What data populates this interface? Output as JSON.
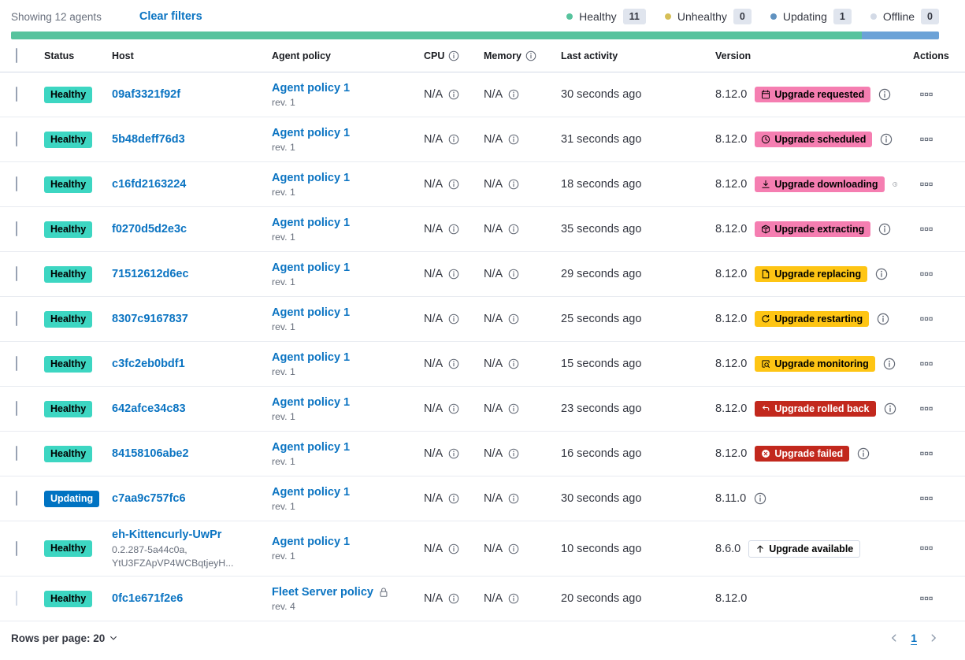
{
  "toolbar": {
    "showing": "Showing 12 agents",
    "clear_filters": "Clear filters",
    "legend": [
      {
        "label": "Healthy",
        "count": "11",
        "color": "#57c39d"
      },
      {
        "label": "Unhealthy",
        "count": "0",
        "color": "#d6bf57"
      },
      {
        "label": "Updating",
        "count": "1",
        "color": "#6092c0"
      },
      {
        "label": "Offline",
        "count": "0",
        "color": "#d3dae6"
      }
    ]
  },
  "health_bar": {
    "segments": [
      {
        "status": "healthy",
        "color": "#57c39d",
        "pct": 91.7
      },
      {
        "status": "updating",
        "color": "#6ba2d7",
        "pct": 8.3
      }
    ]
  },
  "table": {
    "headers": {
      "status": "Status",
      "host": "Host",
      "policy": "Agent policy",
      "cpu": "CPU",
      "memory": "Memory",
      "last_activity": "Last activity",
      "version": "Version",
      "actions": "Actions"
    },
    "rows": [
      {
        "status": "Healthy",
        "status_type": "healthy",
        "host": "09af3321f92f",
        "host_sub": "",
        "policy": "Agent policy 1",
        "policy_rev": "rev. 1",
        "policy_locked": false,
        "cpu": "N/A",
        "memory": "N/A",
        "last_activity": "30 seconds ago",
        "version": "8.12.0",
        "badge": {
          "label": "Upgrade requested",
          "icon": "calendar-icon",
          "type": "accent"
        },
        "version_info": true,
        "checkbox_disabled": false
      },
      {
        "status": "Healthy",
        "status_type": "healthy",
        "host": "5b48deff76d3",
        "host_sub": "",
        "policy": "Agent policy 1",
        "policy_rev": "rev. 1",
        "policy_locked": false,
        "cpu": "N/A",
        "memory": "N/A",
        "last_activity": "31 seconds ago",
        "version": "8.12.0",
        "badge": {
          "label": "Upgrade scheduled",
          "icon": "clock-icon",
          "type": "accent"
        },
        "version_info": true,
        "checkbox_disabled": false
      },
      {
        "status": "Healthy",
        "status_type": "healthy",
        "host": "c16fd2163224",
        "host_sub": "",
        "policy": "Agent policy 1",
        "policy_rev": "rev. 1",
        "policy_locked": false,
        "cpu": "N/A",
        "memory": "N/A",
        "last_activity": "18 seconds ago",
        "version": "8.12.0",
        "badge": {
          "label": "Upgrade downloading",
          "icon": "download-icon",
          "type": "accent"
        },
        "version_info": true,
        "checkbox_disabled": false
      },
      {
        "status": "Healthy",
        "status_type": "healthy",
        "host": "f0270d5d2e3c",
        "host_sub": "",
        "policy": "Agent policy 1",
        "policy_rev": "rev. 1",
        "policy_locked": false,
        "cpu": "N/A",
        "memory": "N/A",
        "last_activity": "35 seconds ago",
        "version": "8.12.0",
        "badge": {
          "label": "Upgrade extracting",
          "icon": "package-icon",
          "type": "accent"
        },
        "version_info": true,
        "checkbox_disabled": false
      },
      {
        "status": "Healthy",
        "status_type": "healthy",
        "host": "71512612d6ec",
        "host_sub": "",
        "policy": "Agent policy 1",
        "policy_rev": "rev. 1",
        "policy_locked": false,
        "cpu": "N/A",
        "memory": "N/A",
        "last_activity": "29 seconds ago",
        "version": "8.12.0",
        "badge": {
          "label": "Upgrade replacing",
          "icon": "document-icon",
          "type": "warning"
        },
        "version_info": true,
        "checkbox_disabled": false
      },
      {
        "status": "Healthy",
        "status_type": "healthy",
        "host": "8307c9167837",
        "host_sub": "",
        "policy": "Agent policy 1",
        "policy_rev": "rev. 1",
        "policy_locked": false,
        "cpu": "N/A",
        "memory": "N/A",
        "last_activity": "25 seconds ago",
        "version": "8.12.0",
        "badge": {
          "label": "Upgrade restarting",
          "icon": "refresh-icon",
          "type": "warning"
        },
        "version_info": true,
        "checkbox_disabled": false
      },
      {
        "status": "Healthy",
        "status_type": "healthy",
        "host": "c3fc2eb0bdf1",
        "host_sub": "",
        "policy": "Agent policy 1",
        "policy_rev": "rev. 1",
        "policy_locked": false,
        "cpu": "N/A",
        "memory": "N/A",
        "last_activity": "15 seconds ago",
        "version": "8.12.0",
        "badge": {
          "label": "Upgrade monitoring",
          "icon": "inspect-icon",
          "type": "warning"
        },
        "version_info": true,
        "checkbox_disabled": false
      },
      {
        "status": "Healthy",
        "status_type": "healthy",
        "host": "642afce34c83",
        "host_sub": "",
        "policy": "Agent policy 1",
        "policy_rev": "rev. 1",
        "policy_locked": false,
        "cpu": "N/A",
        "memory": "N/A",
        "last_activity": "23 seconds ago",
        "version": "8.12.0",
        "badge": {
          "label": "Upgrade rolled back",
          "icon": "return-icon",
          "type": "danger"
        },
        "version_info": true,
        "checkbox_disabled": false
      },
      {
        "status": "Healthy",
        "status_type": "healthy",
        "host": "84158106abe2",
        "host_sub": "",
        "policy": "Agent policy 1",
        "policy_rev": "rev. 1",
        "policy_locked": false,
        "cpu": "N/A",
        "memory": "N/A",
        "last_activity": "16 seconds ago",
        "version": "8.12.0",
        "badge": {
          "label": "Upgrade failed",
          "icon": "error-icon",
          "type": "danger"
        },
        "version_info": true,
        "checkbox_disabled": false
      },
      {
        "status": "Updating",
        "status_type": "updating",
        "host": "c7aa9c757fc6",
        "host_sub": "",
        "policy": "Agent policy 1",
        "policy_rev": "rev. 1",
        "policy_locked": false,
        "cpu": "N/A",
        "memory": "N/A",
        "last_activity": "30 seconds ago",
        "version": "8.11.0",
        "badge": null,
        "version_info": true,
        "checkbox_disabled": false
      },
      {
        "status": "Healthy",
        "status_type": "healthy",
        "host": "eh-Kittencurly-UwPr",
        "host_sub": "0.2.287-5a44c0a,\nYtU3FZApVP4WCBqtjeyH...",
        "policy": "Agent policy 1",
        "policy_rev": "rev. 1",
        "policy_locked": false,
        "cpu": "N/A",
        "memory": "N/A",
        "last_activity": "10 seconds ago",
        "version": "8.6.0",
        "badge": {
          "label": "Upgrade available",
          "icon": "arrow-up-icon",
          "type": "hollow"
        },
        "version_info": false,
        "checkbox_disabled": false
      },
      {
        "status": "Healthy",
        "status_type": "healthy",
        "host": "0fc1e671f2e6",
        "host_sub": "",
        "policy": "Fleet Server policy",
        "policy_rev": "rev. 4",
        "policy_locked": true,
        "cpu": "N/A",
        "memory": "N/A",
        "last_activity": "20 seconds ago",
        "version": "8.12.0",
        "badge": null,
        "version_info": false,
        "checkbox_disabled": true
      }
    ]
  },
  "footer": {
    "rows_per_page": "Rows per page: 20",
    "page": "1"
  }
}
